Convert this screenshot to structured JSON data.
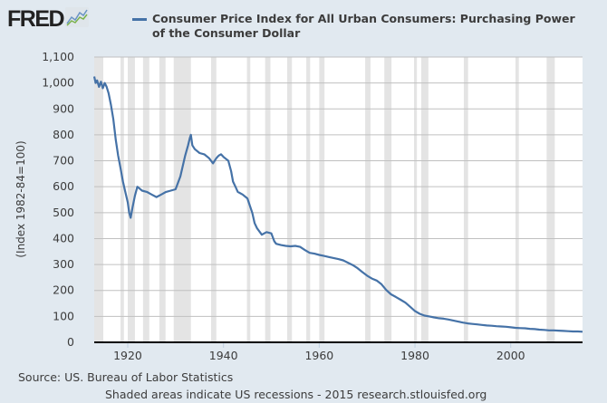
{
  "header": {
    "logo_text": "FRED",
    "logo_icon": "chart-line-icon"
  },
  "legend": {
    "label": "Consumer Price Index for All Urban Consumers: Purchasing Power of the Consumer Dollar",
    "color": "#4572a7"
  },
  "footer": {
    "source": "Source: US. Bureau of Labor Statistics",
    "note": "Shaded areas indicate US recessions - 2015 research.stlouisfed.org"
  },
  "chart_data": {
    "type": "line",
    "title": "Consumer Price Index for All Urban Consumers: Purchasing Power of the Consumer Dollar",
    "xlabel": "",
    "ylabel": "(Index 1982-84=100)",
    "xlim": [
      1913,
      2015
    ],
    "ylim": [
      0,
      1100
    ],
    "grid": true,
    "legend_position": "top",
    "x_ticks": [
      1920,
      1940,
      1960,
      1980,
      2000
    ],
    "x_tick_labels": [
      "1920",
      "1940",
      "1960",
      "1980",
      "2000"
    ],
    "y_ticks": [
      0,
      100,
      200,
      300,
      400,
      500,
      600,
      700,
      800,
      900,
      1000,
      1100
    ],
    "y_tick_labels": [
      "0",
      "100",
      "200",
      "300",
      "400",
      "500",
      "600",
      "700",
      "800",
      "900",
      "1,000",
      "1,100"
    ],
    "series": [
      {
        "name": "Consumer Price Index for All Urban Consumers: Purchasing Power of the Consumer Dollar",
        "color": "#4572a7",
        "x": [
          1913,
          1913.3,
          1913.6,
          1914,
          1914.4,
          1914.8,
          1915.2,
          1915.6,
          1916,
          1916.5,
          1917,
          1917.5,
          1918,
          1918.5,
          1919,
          1919.5,
          1920,
          1920.3,
          1920.6,
          1921,
          1921.5,
          1922,
          1923,
          1924,
          1925,
          1926,
          1927,
          1928,
          1929,
          1930,
          1931,
          1932,
          1932.6,
          1933,
          1933.2,
          1933.5,
          1934,
          1935,
          1936,
          1937,
          1937.8,
          1938.5,
          1939,
          1939.5,
          1940,
          1941,
          1941.6,
          1942,
          1942.5,
          1943,
          1944,
          1945,
          1946,
          1946.5,
          1947,
          1948,
          1948.5,
          1949,
          1950,
          1950.6,
          1951,
          1952,
          1953,
          1954,
          1955,
          1956,
          1957,
          1958,
          1959,
          1960,
          1961,
          1962,
          1963,
          1964,
          1965,
          1966,
          1967,
          1968,
          1969,
          1970,
          1971,
          1972,
          1973,
          1974,
          1975,
          1976,
          1977,
          1978,
          1979,
          1980,
          1981,
          1982,
          1983,
          1984,
          1985,
          1986,
          1987,
          1988,
          1989,
          1990,
          1991,
          1992,
          1993,
          1994,
          1995,
          1996,
          1997,
          1998,
          1999,
          2000,
          2001,
          2002,
          2003,
          2004,
          2005,
          2006,
          2007,
          2008,
          2009,
          2010,
          2011,
          2012,
          2013,
          2014,
          2015
        ],
        "values": [
          1025,
          1000,
          1010,
          985,
          1005,
          980,
          1000,
          985,
          960,
          915,
          860,
          780,
          720,
          670,
          620,
          580,
          540,
          500,
          480,
          520,
          565,
          600,
          585,
          580,
          570,
          560,
          570,
          580,
          585,
          590,
          640,
          720,
          760,
          790,
          800,
          760,
          745,
          730,
          725,
          710,
          690,
          710,
          720,
          725,
          715,
          700,
          660,
          620,
          600,
          580,
          570,
          555,
          500,
          460,
          440,
          415,
          420,
          425,
          420,
          390,
          380,
          375,
          372,
          370,
          372,
          368,
          356,
          345,
          342,
          337,
          333,
          329,
          325,
          321,
          316,
          307,
          298,
          286,
          271,
          257,
          246,
          238,
          224,
          202,
          185,
          175,
          164,
          153,
          137,
          121,
          110,
          103,
          100,
          96,
          93,
          91,
          88,
          84,
          80,
          76,
          73,
          71,
          69,
          67,
          65,
          64,
          62,
          61,
          60,
          58,
          56,
          55,
          54,
          52,
          51,
          49,
          48,
          46,
          46,
          45,
          44,
          43,
          42,
          42,
          41
        ]
      }
    ],
    "recessions": [
      [
        1913.0,
        1914.9
      ],
      [
        1918.5,
        1919.2
      ],
      [
        1920.0,
        1921.5
      ],
      [
        1923.2,
        1924.5
      ],
      [
        1926.6,
        1927.9
      ],
      [
        1929.6,
        1933.2
      ],
      [
        1937.4,
        1938.5
      ],
      [
        1944.9,
        1945.6
      ],
      [
        1948.7,
        1949.8
      ],
      [
        1953.3,
        1954.3
      ],
      [
        1957.3,
        1958.1
      ],
      [
        1960.0,
        1961.1
      ],
      [
        1969.6,
        1970.7
      ],
      [
        1973.6,
        1975.1
      ],
      [
        1979.8,
        1980.4
      ],
      [
        1981.3,
        1982.8
      ],
      [
        1990.2,
        1991.1
      ],
      [
        2001.0,
        2001.7
      ],
      [
        2007.5,
        2009.2
      ]
    ]
  }
}
